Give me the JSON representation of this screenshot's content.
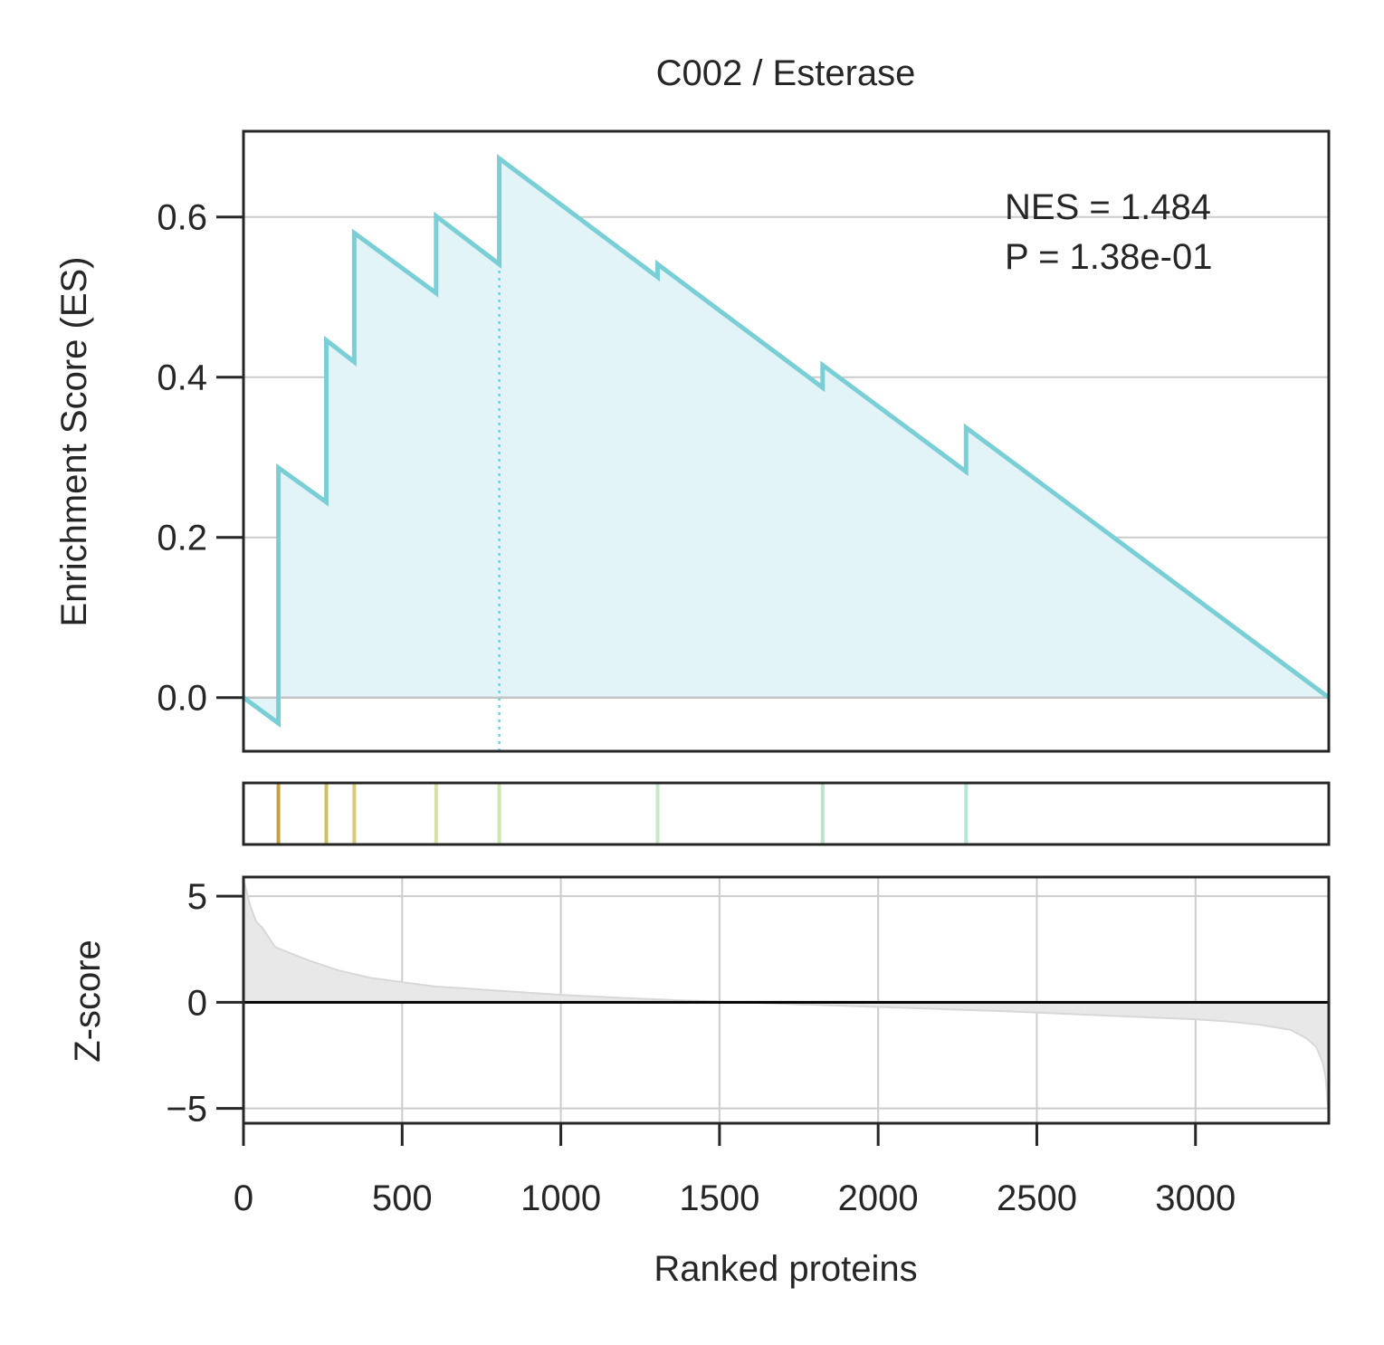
{
  "chart_data": {
    "type": "line",
    "title": "C002 / Esterase",
    "xlabel": "Ranked proteins",
    "xlim": [
      0,
      3420
    ],
    "x_ticks": [
      "0",
      "500",
      "1000",
      "1500",
      "2000",
      "2500",
      "3000"
    ],
    "x_tick_values": [
      0,
      500,
      1000,
      1500,
      2000,
      2500,
      3000
    ],
    "es_panel": {
      "ylabel": "Enrichment Score (ES)",
      "ylim": [
        -0.067,
        0.707
      ],
      "y_ticks": [
        "0.0",
        "0.2",
        "0.4",
        "0.6"
      ],
      "y_tick_values": [
        0.0,
        0.2,
        0.4,
        0.6
      ],
      "grid": "horizontal",
      "line_color": "#7acfd6",
      "fill_color": "#e2f4f7",
      "leading_edge_x": 806,
      "series": [
        {
          "x": [
            0,
            110,
            110,
            261,
            261,
            349,
            349,
            607,
            607,
            806,
            806,
            1305,
            1305,
            1825,
            1825,
            2277,
            2277,
            3420
          ],
          "values": [
            0.0,
            -0.032,
            0.287,
            0.244,
            0.446,
            0.419,
            0.58,
            0.505,
            0.601,
            0.541,
            0.673,
            0.525,
            0.541,
            0.387,
            0.415,
            0.282,
            0.337,
            0.0
          ]
        }
      ]
    },
    "hits_panel": {
      "positions": [
        110,
        261,
        349,
        607,
        806,
        1305,
        1825,
        2277
      ],
      "colors": [
        "#c7a043",
        "#cfc060",
        "#d9cb78",
        "#d6e3a4",
        "#cfe8b0",
        "#c4ebc8",
        "#b9e6c8",
        "#b7e8d4"
      ]
    },
    "zscore_panel": {
      "ylabel": "Z-score",
      "ylim": [
        -5.7,
        5.9
      ],
      "y_ticks": [
        "5",
        "0",
        "−5"
      ],
      "y_tick_values": [
        5,
        0,
        -5
      ],
      "grid": "both",
      "fill_color": "#e8e8e8",
      "x": [
        0,
        20,
        40,
        60,
        100,
        150,
        200,
        300,
        400,
        500,
        600,
        800,
        1000,
        1200,
        1400,
        1600,
        1800,
        2000,
        2200,
        2400,
        2600,
        2800,
        3000,
        3100,
        3200,
        3300,
        3350,
        3380,
        3400,
        3410,
        3420
      ],
      "values": [
        5.8,
        4.6,
        3.8,
        3.5,
        2.6,
        2.3,
        2.0,
        1.5,
        1.15,
        0.95,
        0.75,
        0.55,
        0.35,
        0.2,
        0.08,
        -0.02,
        -0.12,
        -0.22,
        -0.32,
        -0.42,
        -0.55,
        -0.68,
        -0.8,
        -0.9,
        -1.05,
        -1.3,
        -1.7,
        -2.1,
        -2.8,
        -3.5,
        -5.5
      ]
    },
    "annotations": [
      "NES = 1.484",
      "P = 1.38e-01"
    ]
  }
}
